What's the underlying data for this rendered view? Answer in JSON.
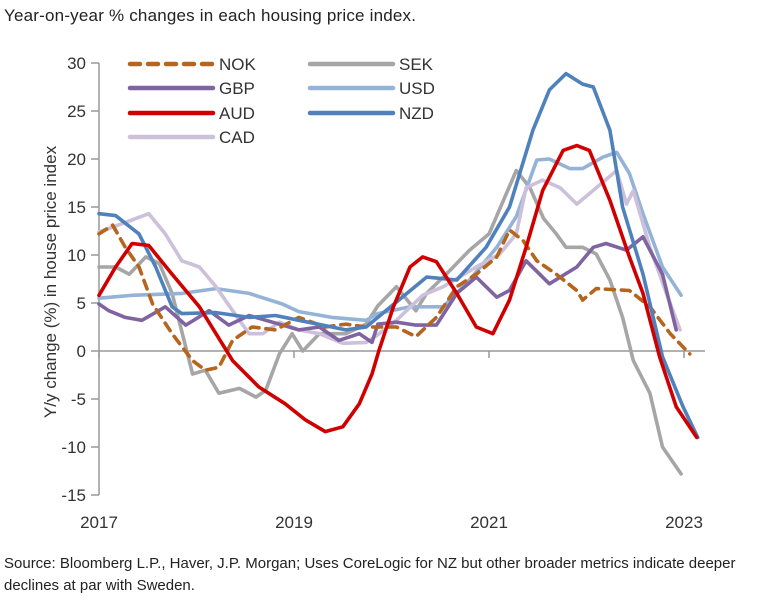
{
  "title": "Year-on-year % changes in each housing price index.",
  "source": "Source: Bloomberg L.P., Haver, J.P. Morgan; Uses CoreLogic for NZ but other broader metrics indicate deeper declines at par with Sweden.",
  "chart_data": {
    "type": "line",
    "title": "Year-on-year % changes in each housing price index.",
    "xlabel": "",
    "ylabel": "Y/y change (%) in house price index",
    "xlim": [
      2017,
      2023.2
    ],
    "ylim": [
      -15,
      30
    ],
    "yticks": [
      30,
      25,
      20,
      15,
      10,
      5,
      0,
      -5,
      -10,
      -15
    ],
    "xticks": [
      2017,
      2019,
      2021,
      2023
    ],
    "legend_placement": "top-left",
    "series": [
      {
        "name": "NOK",
        "color": "#b5651d",
        "dashed": true,
        "x": [
          2017.0,
          2017.14,
          2017.27,
          2017.41,
          2017.55,
          2017.75,
          2017.96,
          2018.09,
          2018.23,
          2018.37,
          2018.57,
          2018.81,
          2019.05,
          2019.32,
          2019.53,
          2019.74,
          2019.9,
          2020.05,
          2020.25,
          2020.46,
          2020.67,
          2020.87,
          2021.08,
          2021.21,
          2021.35,
          2021.49,
          2021.69,
          2021.9,
          2021.96,
          2022.1,
          2022.44,
          2022.65,
          2022.86,
          2023.06
        ],
        "y": [
          12.2,
          13.1,
          10.8,
          8.75,
          4.9,
          1.8,
          -1,
          -2,
          -1.7,
          1.1,
          2.5,
          2.2,
          3.5,
          2.5,
          2.8,
          2.5,
          2.5,
          2.5,
          1.5,
          3.5,
          6.7,
          8,
          9.8,
          12.6,
          11.5,
          9.4,
          8,
          6.3,
          5.3,
          6.5,
          6.3,
          4.6,
          1.8,
          -0.3
        ]
      },
      {
        "name": "SEK",
        "color": "#a6a6a6",
        "dashed": false,
        "x": [
          2017.0,
          2017.17,
          2017.31,
          2017.48,
          2017.62,
          2017.75,
          2017.89,
          2017.96,
          2018.09,
          2018.23,
          2018.44,
          2018.61,
          2018.71,
          2018.85,
          2018.98,
          2019.09,
          2019.26,
          2019.53,
          2019.74,
          2019.86,
          2020.05,
          2020.25,
          2020.36,
          2020.6,
          2020.8,
          2021.0,
          2021.28,
          2021.42,
          2021.56,
          2021.69,
          2021.79,
          2021.96,
          2022.1,
          2022.24,
          2022.37,
          2022.48,
          2022.65,
          2022.78,
          2022.97
        ],
        "y": [
          8.75,
          8.75,
          8,
          9.8,
          9.1,
          6,
          0.4,
          -2.4,
          -2,
          -4.4,
          -3.9,
          -4.8,
          -4.1,
          -0.3,
          1.8,
          0,
          1.8,
          1.8,
          2.8,
          4.7,
          6.7,
          4.2,
          6,
          8.4,
          10.5,
          12.2,
          18.8,
          17,
          13.8,
          12.2,
          10.8,
          10.8,
          10.1,
          7.4,
          3.5,
          -1,
          -4.4,
          -10,
          -12.8
        ]
      },
      {
        "name": "GBP",
        "color": "#8064a2",
        "dashed": false,
        "x": [
          2017.0,
          2017.1,
          2017.27,
          2017.44,
          2017.68,
          2017.89,
          2018.13,
          2018.33,
          2018.54,
          2018.78,
          2019.05,
          2019.26,
          2019.46,
          2019.67,
          2019.8,
          2019.86,
          2020.05,
          2020.25,
          2020.46,
          2020.67,
          2020.87,
          2021.08,
          2021.21,
          2021.38,
          2021.62,
          2021.9,
          2022.07,
          2022.2,
          2022.41,
          2022.58,
          2022.78,
          2022.92
        ],
        "y": [
          4.9,
          4.2,
          3.5,
          3.2,
          4.6,
          2.7,
          4.2,
          2.7,
          3.7,
          3,
          2.2,
          2.5,
          1.1,
          1.8,
          0.9,
          2.8,
          3,
          2.7,
          2.7,
          6,
          7.7,
          5.6,
          6.3,
          9.4,
          7,
          8.75,
          10.8,
          11.2,
          10.5,
          11.9,
          8,
          2.2
        ]
      },
      {
        "name": "USD",
        "color": "#95b3d7",
        "dashed": false,
        "x": [
          2017.0,
          2017.34,
          2017.85,
          2018.2,
          2018.54,
          2018.88,
          2019.05,
          2019.39,
          2019.74,
          2019.86,
          2020.19,
          2020.53,
          2020.8,
          2021.08,
          2021.28,
          2021.49,
          2021.62,
          2021.83,
          2021.96,
          2022.17,
          2022.31,
          2022.44,
          2022.58,
          2022.78,
          2022.97
        ],
        "y": [
          5.5,
          5.8,
          6,
          6.5,
          6,
          4.9,
          4.1,
          3.5,
          3.2,
          3.9,
          4.6,
          4.6,
          7.4,
          10.8,
          14,
          19.9,
          20,
          19,
          19,
          20.2,
          20.7,
          18.5,
          14.3,
          8.75,
          5.8
        ]
      },
      {
        "name": "AUD",
        "color": "#d00000",
        "dashed": false,
        "x": [
          2017.0,
          2017.17,
          2017.34,
          2017.51,
          2017.75,
          2018.03,
          2018.37,
          2018.64,
          2018.91,
          2019.12,
          2019.32,
          2019.5,
          2019.67,
          2019.8,
          2019.87,
          2020.02,
          2020.19,
          2020.32,
          2020.46,
          2020.67,
          2020.87,
          2021.04,
          2021.21,
          2021.38,
          2021.55,
          2021.76,
          2021.9,
          2022.03,
          2022.24,
          2022.44,
          2022.58,
          2022.75,
          2022.92,
          2023.13
        ],
        "y": [
          5.8,
          8.75,
          11.2,
          11,
          8,
          4.6,
          -1,
          -3.75,
          -5.5,
          -7.2,
          -8.4,
          -7.9,
          -5.5,
          -2.4,
          0,
          4.6,
          8.75,
          9.8,
          9.3,
          6,
          2.5,
          1.8,
          5.3,
          10.8,
          16.7,
          20.9,
          21.4,
          20.9,
          15.7,
          9.8,
          6,
          -0.6,
          -5.8,
          -9
        ]
      },
      {
        "name": "NZD",
        "color": "#4f81bd",
        "dashed": false,
        "x": [
          2017.0,
          2017.17,
          2017.41,
          2017.58,
          2017.75,
          2017.85,
          2018.2,
          2018.54,
          2018.81,
          2019.05,
          2019.39,
          2019.53,
          2019.74,
          2019.86,
          2020.36,
          2020.67,
          2020.97,
          2021.21,
          2021.45,
          2021.62,
          2021.79,
          2021.96,
          2022.07,
          2022.24,
          2022.37,
          2022.58,
          2022.78,
          2022.99,
          2023.14
        ],
        "y": [
          14.3,
          14.1,
          12.2,
          8.8,
          4.6,
          3.9,
          4,
          3.5,
          3.7,
          3.2,
          2.5,
          2.2,
          2.5,
          3.5,
          7.7,
          7.4,
          10.8,
          15,
          23,
          27.2,
          28.9,
          27.8,
          27.5,
          23,
          15,
          8,
          -0.6,
          -5.8,
          -9
        ]
      },
      {
        "name": "CAD",
        "color": "#ccc0da",
        "dashed": false,
        "x": [
          2017.0,
          2017.27,
          2017.51,
          2017.68,
          2017.85,
          2018.03,
          2018.2,
          2018.37,
          2018.54,
          2018.68,
          2018.85,
          2019.05,
          2019.26,
          2019.5,
          2019.74,
          2019.86,
          2020.05,
          2020.32,
          2020.53,
          2020.87,
          2021.11,
          2021.28,
          2021.38,
          2021.55,
          2021.73,
          2021.9,
          2022.03,
          2022.31,
          2022.41,
          2022.48,
          2022.65,
          2022.82,
          2022.96
        ],
        "y": [
          12.4,
          13.4,
          14.3,
          12.2,
          9.4,
          8.75,
          6.7,
          4.2,
          1.8,
          1.8,
          3,
          2.2,
          1.8,
          0.8,
          0.9,
          1.7,
          3.2,
          5.8,
          6.7,
          8.75,
          10.1,
          12.2,
          17,
          17.8,
          17,
          15.3,
          16.4,
          18.8,
          15.3,
          16.7,
          10.8,
          6,
          2.2
        ]
      }
    ],
    "legend": [
      {
        "label": "NOK"
      },
      {
        "label": "GBP"
      },
      {
        "label": "AUD"
      },
      {
        "label": "CAD"
      },
      {
        "label": "SEK"
      },
      {
        "label": "USD"
      },
      {
        "label": "NZD"
      }
    ]
  }
}
